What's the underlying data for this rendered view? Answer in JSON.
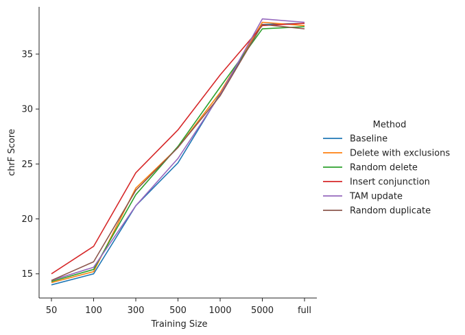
{
  "chart_data": {
    "type": "line",
    "xlabel": "Training Size",
    "ylabel": "chrF Score",
    "x": [
      "50",
      "100",
      "300",
      "500",
      "1000",
      "5000",
      "full"
    ],
    "yticks": [
      15,
      20,
      25,
      30,
      35
    ],
    "ylim": [
      12.8,
      39.3
    ],
    "grid": false,
    "legend": {
      "title": "Method",
      "placement": "right"
    },
    "series": [
      {
        "name": "Baseline",
        "color": "#1f77b4",
        "values": [
          14.0,
          15.0,
          21.2,
          25.1,
          31.4,
          37.7,
          37.8
        ]
      },
      {
        "name": "Delete with exclusions",
        "color": "#ff7f0e",
        "values": [
          14.2,
          15.2,
          22.8,
          26.5,
          31.5,
          37.9,
          37.6
        ]
      },
      {
        "name": "Random delete",
        "color": "#2ca02c",
        "values": [
          14.3,
          15.4,
          22.2,
          26.6,
          32.0,
          37.3,
          37.5
        ]
      },
      {
        "name": "Insert conjunction",
        "color": "#d62728",
        "values": [
          15.0,
          17.5,
          24.2,
          28.1,
          33.1,
          37.6,
          37.8
        ]
      },
      {
        "name": "TAM update",
        "color": "#9467bd",
        "values": [
          14.4,
          15.6,
          21.2,
          25.5,
          31.3,
          38.2,
          37.9
        ]
      },
      {
        "name": "Random duplicate",
        "color": "#8c564b",
        "values": [
          14.4,
          16.1,
          22.6,
          26.5,
          31.2,
          37.7,
          37.3
        ]
      }
    ]
  }
}
